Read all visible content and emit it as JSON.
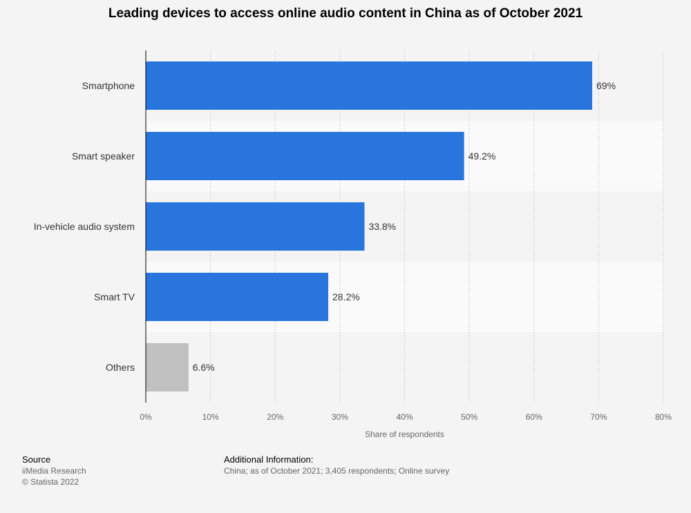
{
  "chart_data": {
    "type": "bar",
    "orientation": "horizontal",
    "title": "Leading devices to access online audio content in China as of October 2021",
    "categories": [
      "Smartphone",
      "Smart speaker",
      "In-vehicle audio system",
      "Smart TV",
      "Others"
    ],
    "values": [
      69,
      49.2,
      33.8,
      28.2,
      6.6
    ],
    "value_labels": [
      "69%",
      "49.2%",
      "33.8%",
      "28.2%",
      "6.6%"
    ],
    "bar_colors": [
      "#2876dd",
      "#2876dd",
      "#2876dd",
      "#2876dd",
      "#c0c0c0"
    ],
    "xlabel": "Share of respondents",
    "ylabel": "",
    "xlim": [
      0,
      80
    ],
    "xticks": [
      0,
      10,
      20,
      30,
      40,
      50,
      60,
      70,
      80
    ],
    "xtick_labels": [
      "0%",
      "10%",
      "20%",
      "30%",
      "40%",
      "50%",
      "60%",
      "70%",
      "80%"
    ],
    "grid": true
  },
  "footer": {
    "source_heading": "Source",
    "source_name": "iiMedia Research",
    "copyright": "© Statista 2022",
    "additional_heading": "Additional Information:",
    "additional_text": "China; as of October 2021; 3,405 respondents; Online survey"
  },
  "colors": {
    "background": "#f4f4f4",
    "band_alt": "#fafafa",
    "axis": "#000000",
    "grid": "#cccccc",
    "text": "#333333",
    "muted": "#666666"
  }
}
